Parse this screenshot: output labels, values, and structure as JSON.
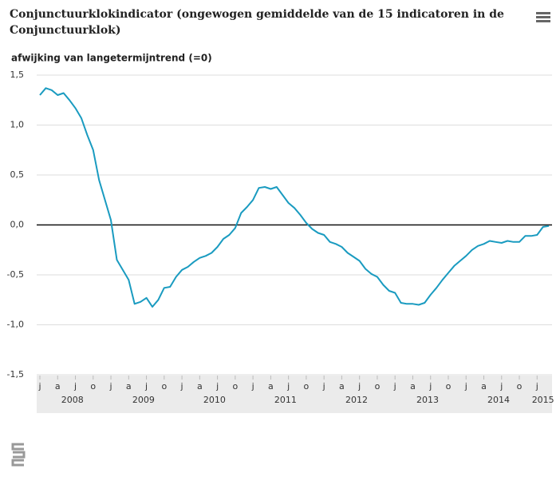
{
  "chart_data": {
    "type": "line",
    "title": "Conjunctuurklokindicator (ongewogen gemiddelde van de 15 indicatoren in de Conjunctuurklok)",
    "y_label": "afwijking van langetermijntrend (=0)",
    "categories": [
      "j",
      null,
      null,
      "a",
      null,
      null,
      "j",
      null,
      null,
      "o",
      null,
      null,
      "j",
      null,
      null,
      "a",
      null,
      null,
      "j",
      null,
      null,
      "o",
      null,
      null,
      "j",
      null,
      null,
      "a",
      null,
      null,
      "j",
      null,
      null,
      "o",
      null,
      null,
      "j",
      null,
      null,
      "a",
      null,
      null,
      "j",
      null,
      null,
      "o",
      null,
      null,
      "j",
      null,
      null,
      "a",
      null,
      null,
      "j",
      null,
      null,
      "o",
      null,
      null,
      "j",
      null,
      null,
      "a",
      null,
      null,
      "j",
      null,
      null,
      "o",
      null,
      null,
      "j",
      null,
      null,
      "a",
      null,
      null,
      "j",
      null,
      null,
      "o",
      null,
      null,
      "j",
      null,
      null
    ],
    "years": [
      "2008",
      "2009",
      "2010",
      "2011",
      "2012",
      "2013",
      "2014",
      "2015"
    ],
    "series": [
      {
        "name": "Conjunctuurklokindicator",
        "color": "#1a9bc0",
        "values": [
          1.3,
          1.37,
          1.35,
          1.3,
          1.32,
          1.25,
          1.17,
          1.07,
          0.9,
          0.75,
          0.45,
          0.25,
          0.05,
          -0.35,
          -0.45,
          -0.55,
          -0.79,
          -0.77,
          -0.73,
          -0.82,
          -0.75,
          -0.63,
          -0.62,
          -0.52,
          -0.45,
          -0.42,
          -0.37,
          -0.33,
          -0.31,
          -0.28,
          -0.22,
          -0.14,
          -0.1,
          -0.03,
          0.12,
          0.18,
          0.25,
          0.37,
          0.38,
          0.36,
          0.38,
          0.3,
          0.22,
          0.17,
          0.1,
          0.02,
          -0.04,
          -0.08,
          -0.1,
          -0.17,
          -0.19,
          -0.22,
          -0.28,
          -0.32,
          -0.36,
          -0.44,
          -0.49,
          -0.52,
          -0.6,
          -0.66,
          -0.68,
          -0.78,
          -0.79,
          -0.79,
          -0.8,
          -0.78,
          -0.7,
          -0.63,
          -0.55,
          -0.48,
          -0.41,
          -0.36,
          -0.31,
          -0.25,
          -0.21,
          -0.19,
          -0.16,
          -0.17,
          -0.18,
          -0.16,
          -0.17,
          -0.17,
          -0.11,
          -0.11,
          -0.1,
          -0.02,
          -0.01
        ]
      }
    ],
    "ylim": [
      -1.5,
      1.5
    ],
    "yticks": [
      {
        "value": -1.5,
        "label": "-1,5"
      },
      {
        "value": -1,
        "label": "-1,0"
      },
      {
        "value": -0.5,
        "label": "-0,5"
      },
      {
        "value": 0,
        "label": "0,0"
      },
      {
        "value": 0.5,
        "label": "0,5"
      },
      {
        "value": 1,
        "label": "1,0"
      },
      {
        "value": 1.5,
        "label": "1,5"
      }
    ],
    "grid": true
  }
}
